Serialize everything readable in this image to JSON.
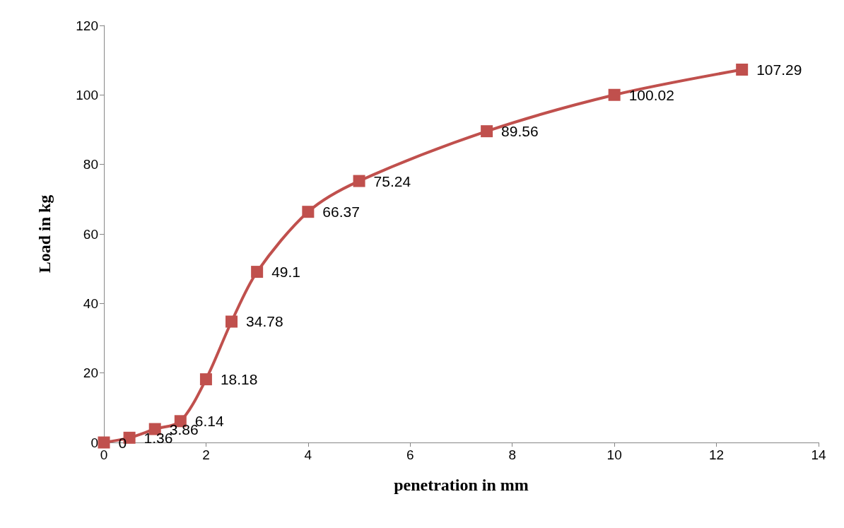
{
  "chart_data": {
    "type": "line",
    "xlabel": "penetration in mm",
    "ylabel": "Load in kg",
    "x": [
      0,
      0.5,
      1,
      1.5,
      2,
      2.5,
      3,
      4,
      5,
      7.5,
      10,
      12.5
    ],
    "series": [
      {
        "color": "#c0504d",
        "values": [
          0,
          1.36,
          3.86,
          6.14,
          18.18,
          34.78,
          49.1,
          66.37,
          75.24,
          89.56,
          100.02,
          107.29
        ]
      }
    ],
    "xlim": [
      0,
      14
    ],
    "xticks": [
      0,
      2,
      4,
      6,
      8,
      10,
      12,
      14
    ],
    "ylim": [
      0,
      120
    ],
    "yticks": [
      0,
      20,
      40,
      60,
      80,
      100,
      120
    ],
    "grid": false,
    "marker": "square",
    "line_style": "solid",
    "data_labels": true
  }
}
